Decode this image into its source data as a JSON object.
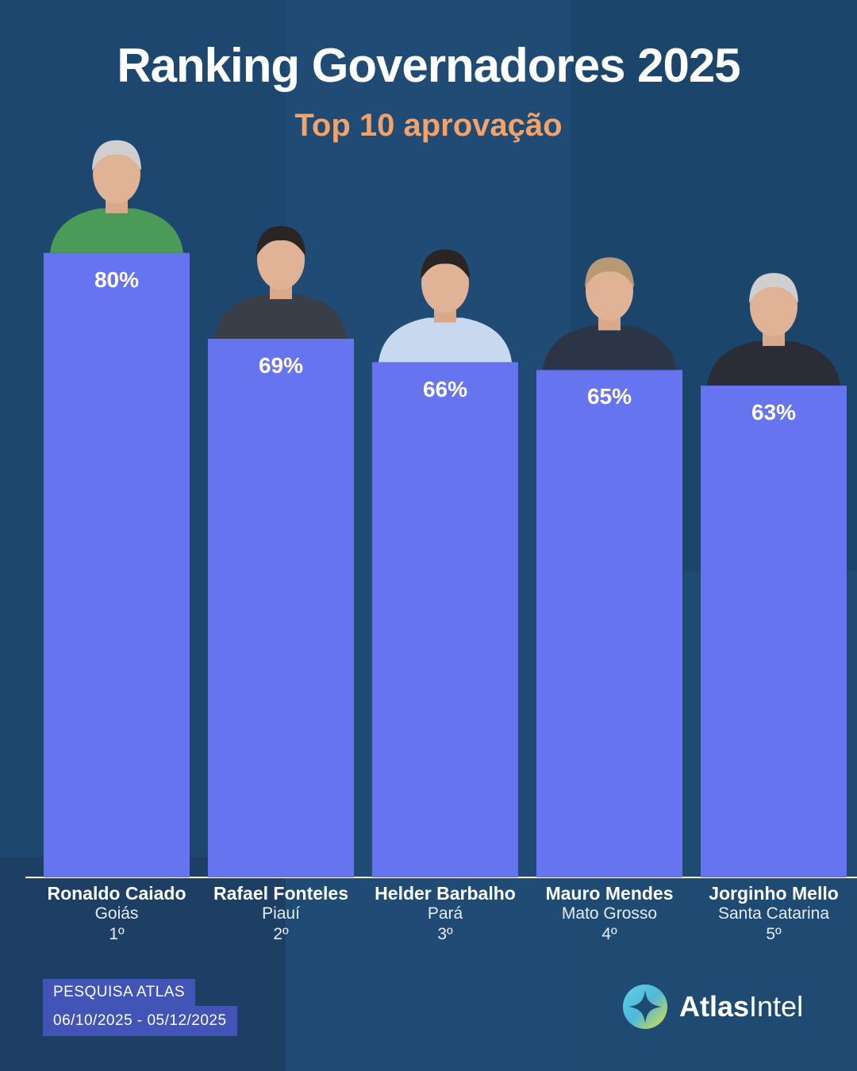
{
  "header": {
    "title": "Ranking Governadores 2025",
    "subtitle": "Top 10 aprovação"
  },
  "chart_data": {
    "type": "bar",
    "title": "Ranking Governadores 2025",
    "subtitle": "Top 10 aprovação",
    "categories": [
      "Ronaldo Caiado",
      "Rafael Fonteles",
      "Helder Barbalho",
      "Mauro Mendes",
      "Jorginho Mello"
    ],
    "values": [
      80,
      69,
      66,
      65,
      63
    ],
    "value_labels": [
      "80%",
      "69%",
      "66%",
      "65%",
      "63%"
    ],
    "states": [
      "Goiás",
      "Piauí",
      "Pará",
      "Mato Grosso",
      "Santa Catarina"
    ],
    "ranks": [
      "1º",
      "2º",
      "3º",
      "4º",
      "5º"
    ],
    "bar_color": "#6774ef",
    "xlabel": "",
    "ylabel": "",
    "ylim": [
      0,
      100
    ],
    "grid": false
  },
  "colors": {
    "background": "#1f4a72",
    "bar": "#6774ef",
    "subtitle": "#f2a26b",
    "source_badge": "#4254b6"
  },
  "portraits": [
    {
      "icon": "person-portrait-icon",
      "shirt": "#4a9a58"
    },
    {
      "icon": "person-portrait-icon",
      "shirt": "#3a3e48"
    },
    {
      "icon": "person-portrait-icon",
      "shirt": "#c8d8ee"
    },
    {
      "icon": "person-portrait-icon",
      "shirt": "#2c3546"
    },
    {
      "icon": "person-portrait-icon",
      "shirt": "#2a2d35"
    }
  ],
  "footer": {
    "source_line1": "PESQUISA ATLAS",
    "source_line2": "06/10/2025 - 05/12/2025",
    "logo_bold": "Atlas",
    "logo_regular": "Intel"
  }
}
